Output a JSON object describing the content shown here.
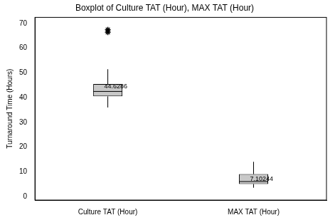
{
  "chart_data": {
    "type": "boxplot",
    "title": "Boxplot of Culture TAT (Hour), MAX TAT (Hour)",
    "y_label": "Turnaround Time (Hours)",
    "categories": [
      "Culture TAT (Hour)",
      "MAX TAT (Hour)"
    ],
    "boxes": [
      {
        "min": 36,
        "q1": 40.5,
        "median": 42.5,
        "q3": 45.5,
        "max": 51.5,
        "outliers": [
          66.5,
          67.5
        ],
        "mean": 44.6286
      },
      {
        "min": 3.5,
        "q1": 5,
        "median": 6,
        "q3": 9,
        "max": 14,
        "outliers": [],
        "mean": 7.10244
      }
    ],
    "color": "#c8c8c8",
    "ylim": [
      -1.5,
      72.5
    ],
    "yticks": [
      0,
      10,
      20,
      30,
      40,
      50,
      60,
      70
    ],
    "grid": false,
    "data_labels": true
  }
}
